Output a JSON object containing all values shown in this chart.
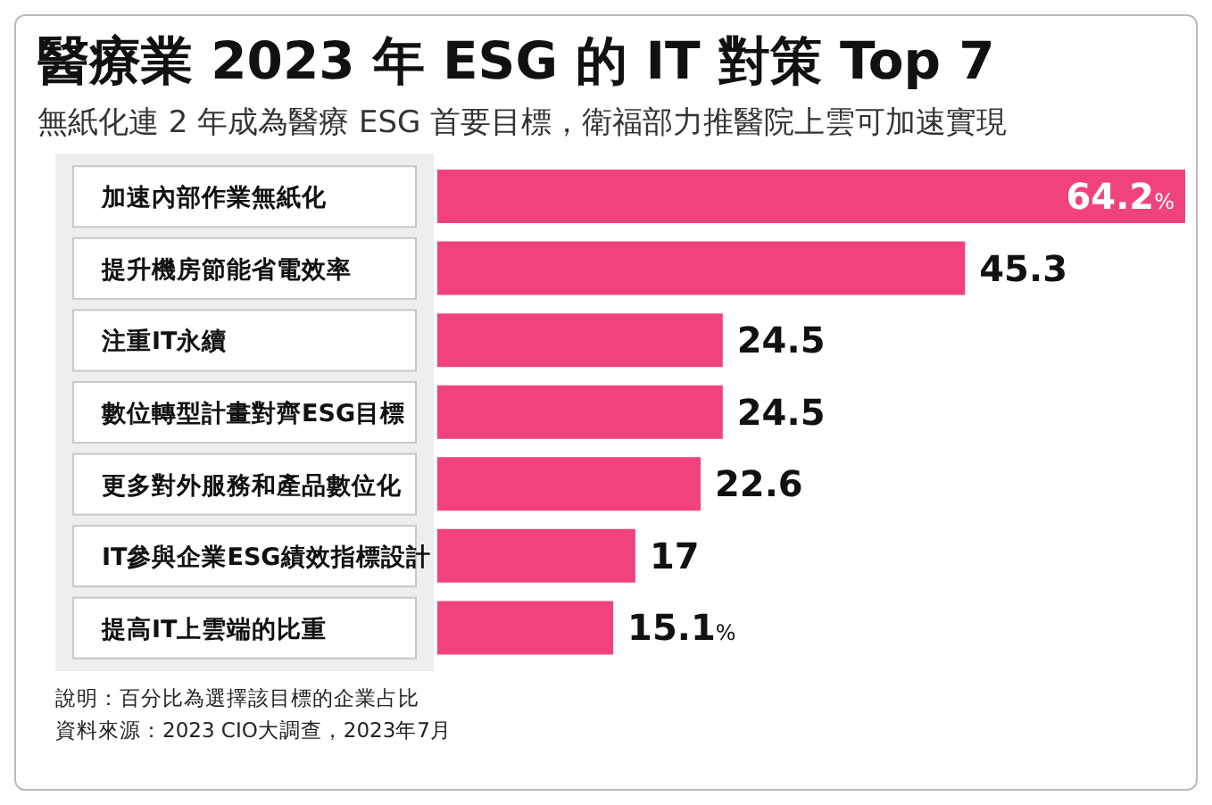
{
  "chart_data": {
    "type": "bar",
    "orientation": "horizontal",
    "title": "醫療業 2023 年 ESG 的 IT 對策 Top 7",
    "subtitle": "無紙化連 2 年成為醫療 ESG 首要目標，衛福部力推醫院上雲可加速實現",
    "categories": [
      "加速內部作業無紙化",
      "提升機房節能省電效率",
      "注重IT永續",
      "數位轉型計畫對齊ESG目標",
      "更多對外服務和產品數位化",
      "IT參與企業ESG績效指標設計",
      "提高IT上雲端的比重"
    ],
    "values": [
      64.2,
      45.3,
      24.5,
      24.5,
      22.6,
      17,
      15.1
    ],
    "value_labels": [
      "64.2%",
      "45.3",
      "24.5",
      "24.5",
      "22.6",
      "17",
      "15.1%"
    ],
    "color": "#f0437c",
    "annotations": [
      "說明：百分比為選擇該目標的企業占比",
      "資料來源：2023 CIO大調查，2023年7月"
    ]
  }
}
